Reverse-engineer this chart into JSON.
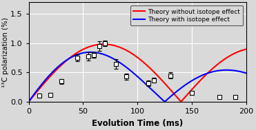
{
  "title": "",
  "xlabel": "Evolution Time (ms)",
  "ylabel": "¹³C polarization (%)",
  "xlim": [
    0,
    200
  ],
  "ylim": [
    0,
    1.7
  ],
  "yticks": [
    0,
    0.5,
    1,
    1.5
  ],
  "xticks": [
    0,
    50,
    100,
    150,
    200
  ],
  "data_x": [
    10,
    20,
    30,
    45,
    55,
    60,
    65,
    70,
    80,
    90,
    110,
    115,
    130,
    150,
    175,
    190
  ],
  "data_y": [
    0.1,
    0.12,
    0.35,
    0.75,
    0.78,
    0.8,
    0.95,
    1.0,
    0.65,
    0.43,
    0.32,
    0.37,
    0.45,
    0.15,
    0.08,
    0.08
  ],
  "data_yerr": [
    0.03,
    0.03,
    0.04,
    0.06,
    0.07,
    0.05,
    0.08,
    0.05,
    0.08,
    0.05,
    0.05,
    0.04,
    0.05,
    0.03,
    0.03,
    0.03
  ],
  "red_label": "Theory without isotope effect",
  "blue_label": "Theory with isotope effect",
  "red_color": "#ff0000",
  "blue_color": "#0000ff",
  "background_color": "#d9d9d9",
  "grid_color": "#ffffff",
  "red_period": 140.0,
  "red_decay": 2000.0,
  "red_amplitude": 1.02,
  "blue_period": 125.0,
  "blue_decay": 280.0,
  "blue_amplitude": 1.05
}
